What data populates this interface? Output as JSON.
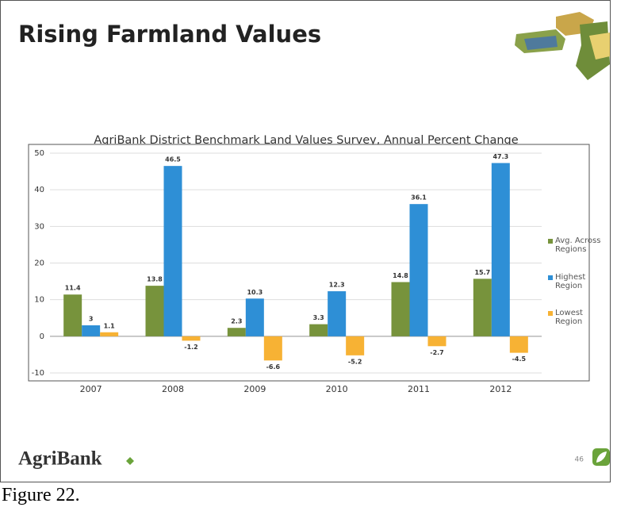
{
  "slide": {
    "title": "Rising Farmland Values",
    "logo": "AgriBank",
    "page_number": "46"
  },
  "caption": "Figure 22.",
  "chart_data": {
    "type": "bar",
    "title": "AgriBank District Benchmark Land Values Survey, Annual Percent Change",
    "categories": [
      "2007",
      "2008",
      "2009",
      "2010",
      "2011",
      "2012"
    ],
    "series": [
      {
        "name": "Avg. Across Regions",
        "color": "#77933c",
        "values": [
          11.4,
          13.8,
          2.3,
          3.3,
          14.8,
          15.7
        ]
      },
      {
        "name": "Highest Region",
        "color": "#2e8fd6",
        "values": [
          3,
          46.5,
          10.3,
          12.3,
          36.1,
          47.3
        ]
      },
      {
        "name": "Lowest Region",
        "color": "#f7b234",
        "values": [
          1.1,
          -1.2,
          -6.6,
          -5.2,
          -2.7,
          -4.5
        ]
      }
    ],
    "ylim": [
      -10,
      50
    ],
    "yticks": [
      -10,
      0,
      10,
      20,
      30,
      40,
      50
    ],
    "grid": true,
    "legend": "right"
  }
}
